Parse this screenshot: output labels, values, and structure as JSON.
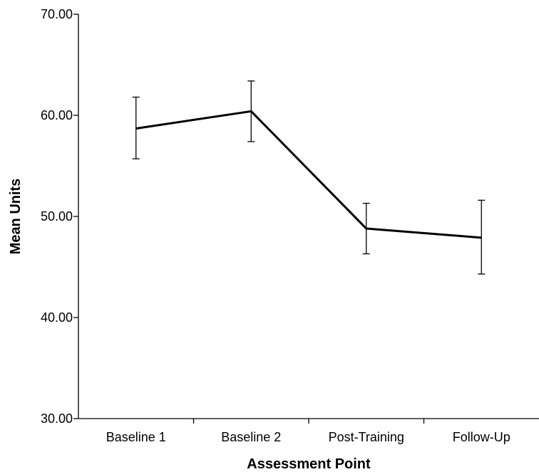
{
  "chart_data": {
    "type": "line",
    "title": "",
    "xlabel": "Assessment Point",
    "ylabel": "Mean Units",
    "categories": [
      "Baseline 1",
      "Baseline 2",
      "Post-Training",
      "Follow-Up"
    ],
    "series": [
      {
        "values": [
          58.7,
          60.4,
          48.8,
          47.9
        ],
        "error_low": [
          55.7,
          57.4,
          46.3,
          44.3
        ],
        "error_high": [
          61.8,
          63.4,
          51.3,
          51.6
        ]
      }
    ],
    "ylim": [
      30,
      70
    ],
    "yticks": [
      30,
      40,
      50,
      60,
      70
    ],
    "ytick_labels": [
      "30.00",
      "40.00",
      "50.00",
      "60.00",
      "70.00"
    ],
    "grid": false,
    "legend": "none",
    "line_color": "#000000"
  }
}
